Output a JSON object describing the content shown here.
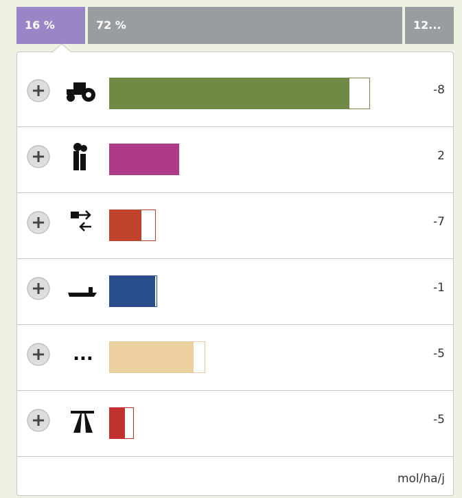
{
  "tabs": [
    "16 %",
    "72 %",
    "12..."
  ],
  "rows": [
    {
      "value": -8
    },
    {
      "value": 2
    },
    {
      "value": -7
    },
    {
      "value": -1
    },
    {
      "icon_text": "...",
      "value": -5
    },
    {
      "value": -5
    }
  ],
  "unit": "mol/ha/j"
}
